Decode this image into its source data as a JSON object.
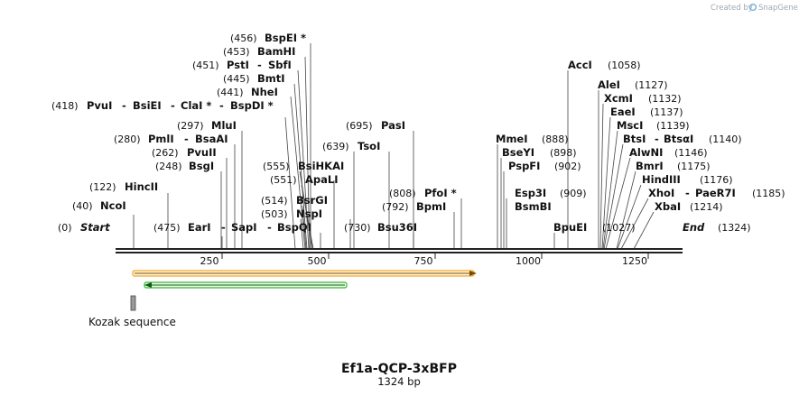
{
  "brand": {
    "created_by": "Created by",
    "name": "SnapGene"
  },
  "map": {
    "title": "Ef1a-QCP-3xBFP",
    "length_label": "1324 bp",
    "total_bp": 1324,
    "ticks": [
      "250",
      "500",
      "750",
      "1000",
      "1250"
    ],
    "tick_values": [
      250,
      500,
      750,
      1000,
      1250
    ]
  },
  "sites": [
    {
      "pos": "(0)",
      "name": "Start",
      "italic": true
    },
    {
      "pos": "(40)",
      "name": "NcoI"
    },
    {
      "pos": "(122)",
      "name": "HincII"
    },
    {
      "pos": "(248)",
      "name": "BsgI"
    },
    {
      "pos": "(262)",
      "name": "PvuII"
    },
    {
      "pos": "(280)",
      "name": "PmlI",
      "extra": "BsaAI"
    },
    {
      "pos": "(297)",
      "name": "MluI"
    },
    {
      "pos": "(418)",
      "name": "PvuI",
      "extra": "BsiEI",
      "extra2": "ClaI *",
      "extra3": "BspDI *"
    },
    {
      "pos": "(441)",
      "name": "NheI"
    },
    {
      "pos": "(445)",
      "name": "BmtI"
    },
    {
      "pos": "(451)",
      "name": "PstI",
      "extra": "SbfI"
    },
    {
      "pos": "(453)",
      "name": "BamHI"
    },
    {
      "pos": "(456)",
      "name": "BspEI *"
    },
    {
      "pos": "(475)",
      "name": "EarI",
      "extra": "SapI",
      "extra2": "BspQI"
    },
    {
      "pos": "(503)",
      "name": "NspI"
    },
    {
      "pos": "(514)",
      "name": "BsrGI"
    },
    {
      "pos": "(551)",
      "name": "ApaLI"
    },
    {
      "pos": "(555)",
      "name": "BsiHKAI"
    },
    {
      "pos": "(639)",
      "name": "TsoI"
    },
    {
      "pos": "(695)",
      "name": "PasI"
    },
    {
      "pos": "(730)",
      "name": "Bsu36I"
    },
    {
      "pos": "(792)",
      "name": "BpmI"
    },
    {
      "pos": "(808)",
      "name": "PfoI *"
    },
    {
      "pos": "(888)",
      "name": "MmeI"
    },
    {
      "pos": "(898)",
      "name": "BseYI"
    },
    {
      "pos": "(902)",
      "name": "PspFI"
    },
    {
      "pos": "(909)",
      "name": "Esp3I"
    },
    {
      "pos": "",
      "name": "BsmBI"
    },
    {
      "pos": "(1058)",
      "name": "AccI"
    },
    {
      "pos": "",
      "name": "BpuEI"
    },
    {
      "pos": "(1027)",
      "name": ""
    },
    {
      "pos": "(1127)",
      "name": "AleI"
    },
    {
      "pos": "(1132)",
      "name": "XcmI"
    },
    {
      "pos": "(1137)",
      "name": "EaeI"
    },
    {
      "pos": "(1139)",
      "name": "MscI"
    },
    {
      "pos": "(1140)",
      "name": "BtsI",
      "extra": "BtsαI"
    },
    {
      "pos": "(1146)",
      "name": "AlwNI"
    },
    {
      "pos": "(1175)",
      "name": "BmrI"
    },
    {
      "pos": "(1176)",
      "name": "HindIII"
    },
    {
      "pos": "(1185)",
      "name": "XhoI",
      "extra": "PaeR7I"
    },
    {
      "pos": "(1214)",
      "name": "XbaI"
    },
    {
      "pos": "(1324)",
      "name": "End",
      "italic": true
    }
  ],
  "features": [
    {
      "label": "",
      "color": "#f5a623",
      "direction": "forward"
    },
    {
      "label": "",
      "color": "#3cb43c",
      "direction": "reverse"
    },
    {
      "label": "Kozak sequence",
      "color": "#9a9a9a"
    }
  ],
  "colors": {
    "backbone": "#222222",
    "orange": "#f5a623",
    "green": "#3cb43c",
    "brand": "#6aa9d8"
  }
}
